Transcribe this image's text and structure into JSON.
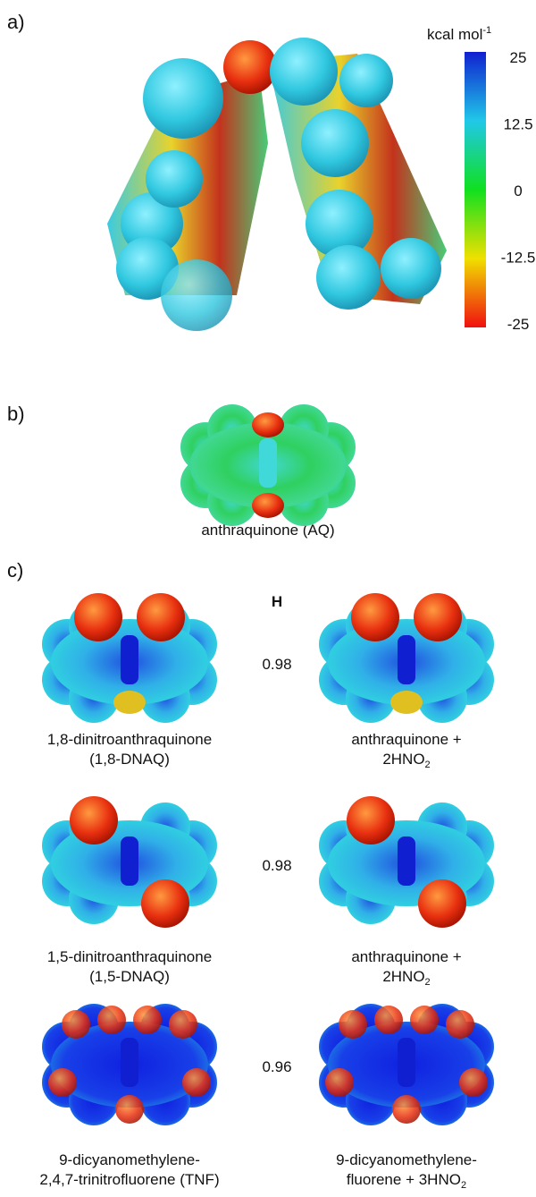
{
  "panels": {
    "a": {
      "label": "a)",
      "colorbar": {
        "unit": "kcal mol",
        "unit_sup": "-1",
        "ticks": [
          25,
          12.5,
          0,
          -12.5,
          -25
        ]
      }
    },
    "b": {
      "label": "b)",
      "caption": "anthraquinone (AQ)"
    },
    "c": {
      "label": "c)",
      "header": "H",
      "rows": [
        {
          "left": [
            "1,8-dinitroanthraquinone",
            "(1,8-DNAQ)"
          ],
          "h": 0.98,
          "right": [
            "anthraquinone +",
            "2HNO"
          ],
          "right_sub": "2"
        },
        {
          "left": [
            "1,5-dinitroanthraquinone",
            "(1,5-DNAQ)"
          ],
          "h": 0.98,
          "right": [
            "anthraquinone +",
            "2HNO"
          ],
          "right_sub": "2"
        },
        {
          "left": [
            "9-dicyanomethylene-",
            "2,4,7-trinitrofluorene (TNF)"
          ],
          "h": 0.96,
          "right": [
            "9-dicyanomethylene-",
            "fluorene + 3HNO"
          ],
          "right_sub": "2"
        }
      ]
    }
  }
}
